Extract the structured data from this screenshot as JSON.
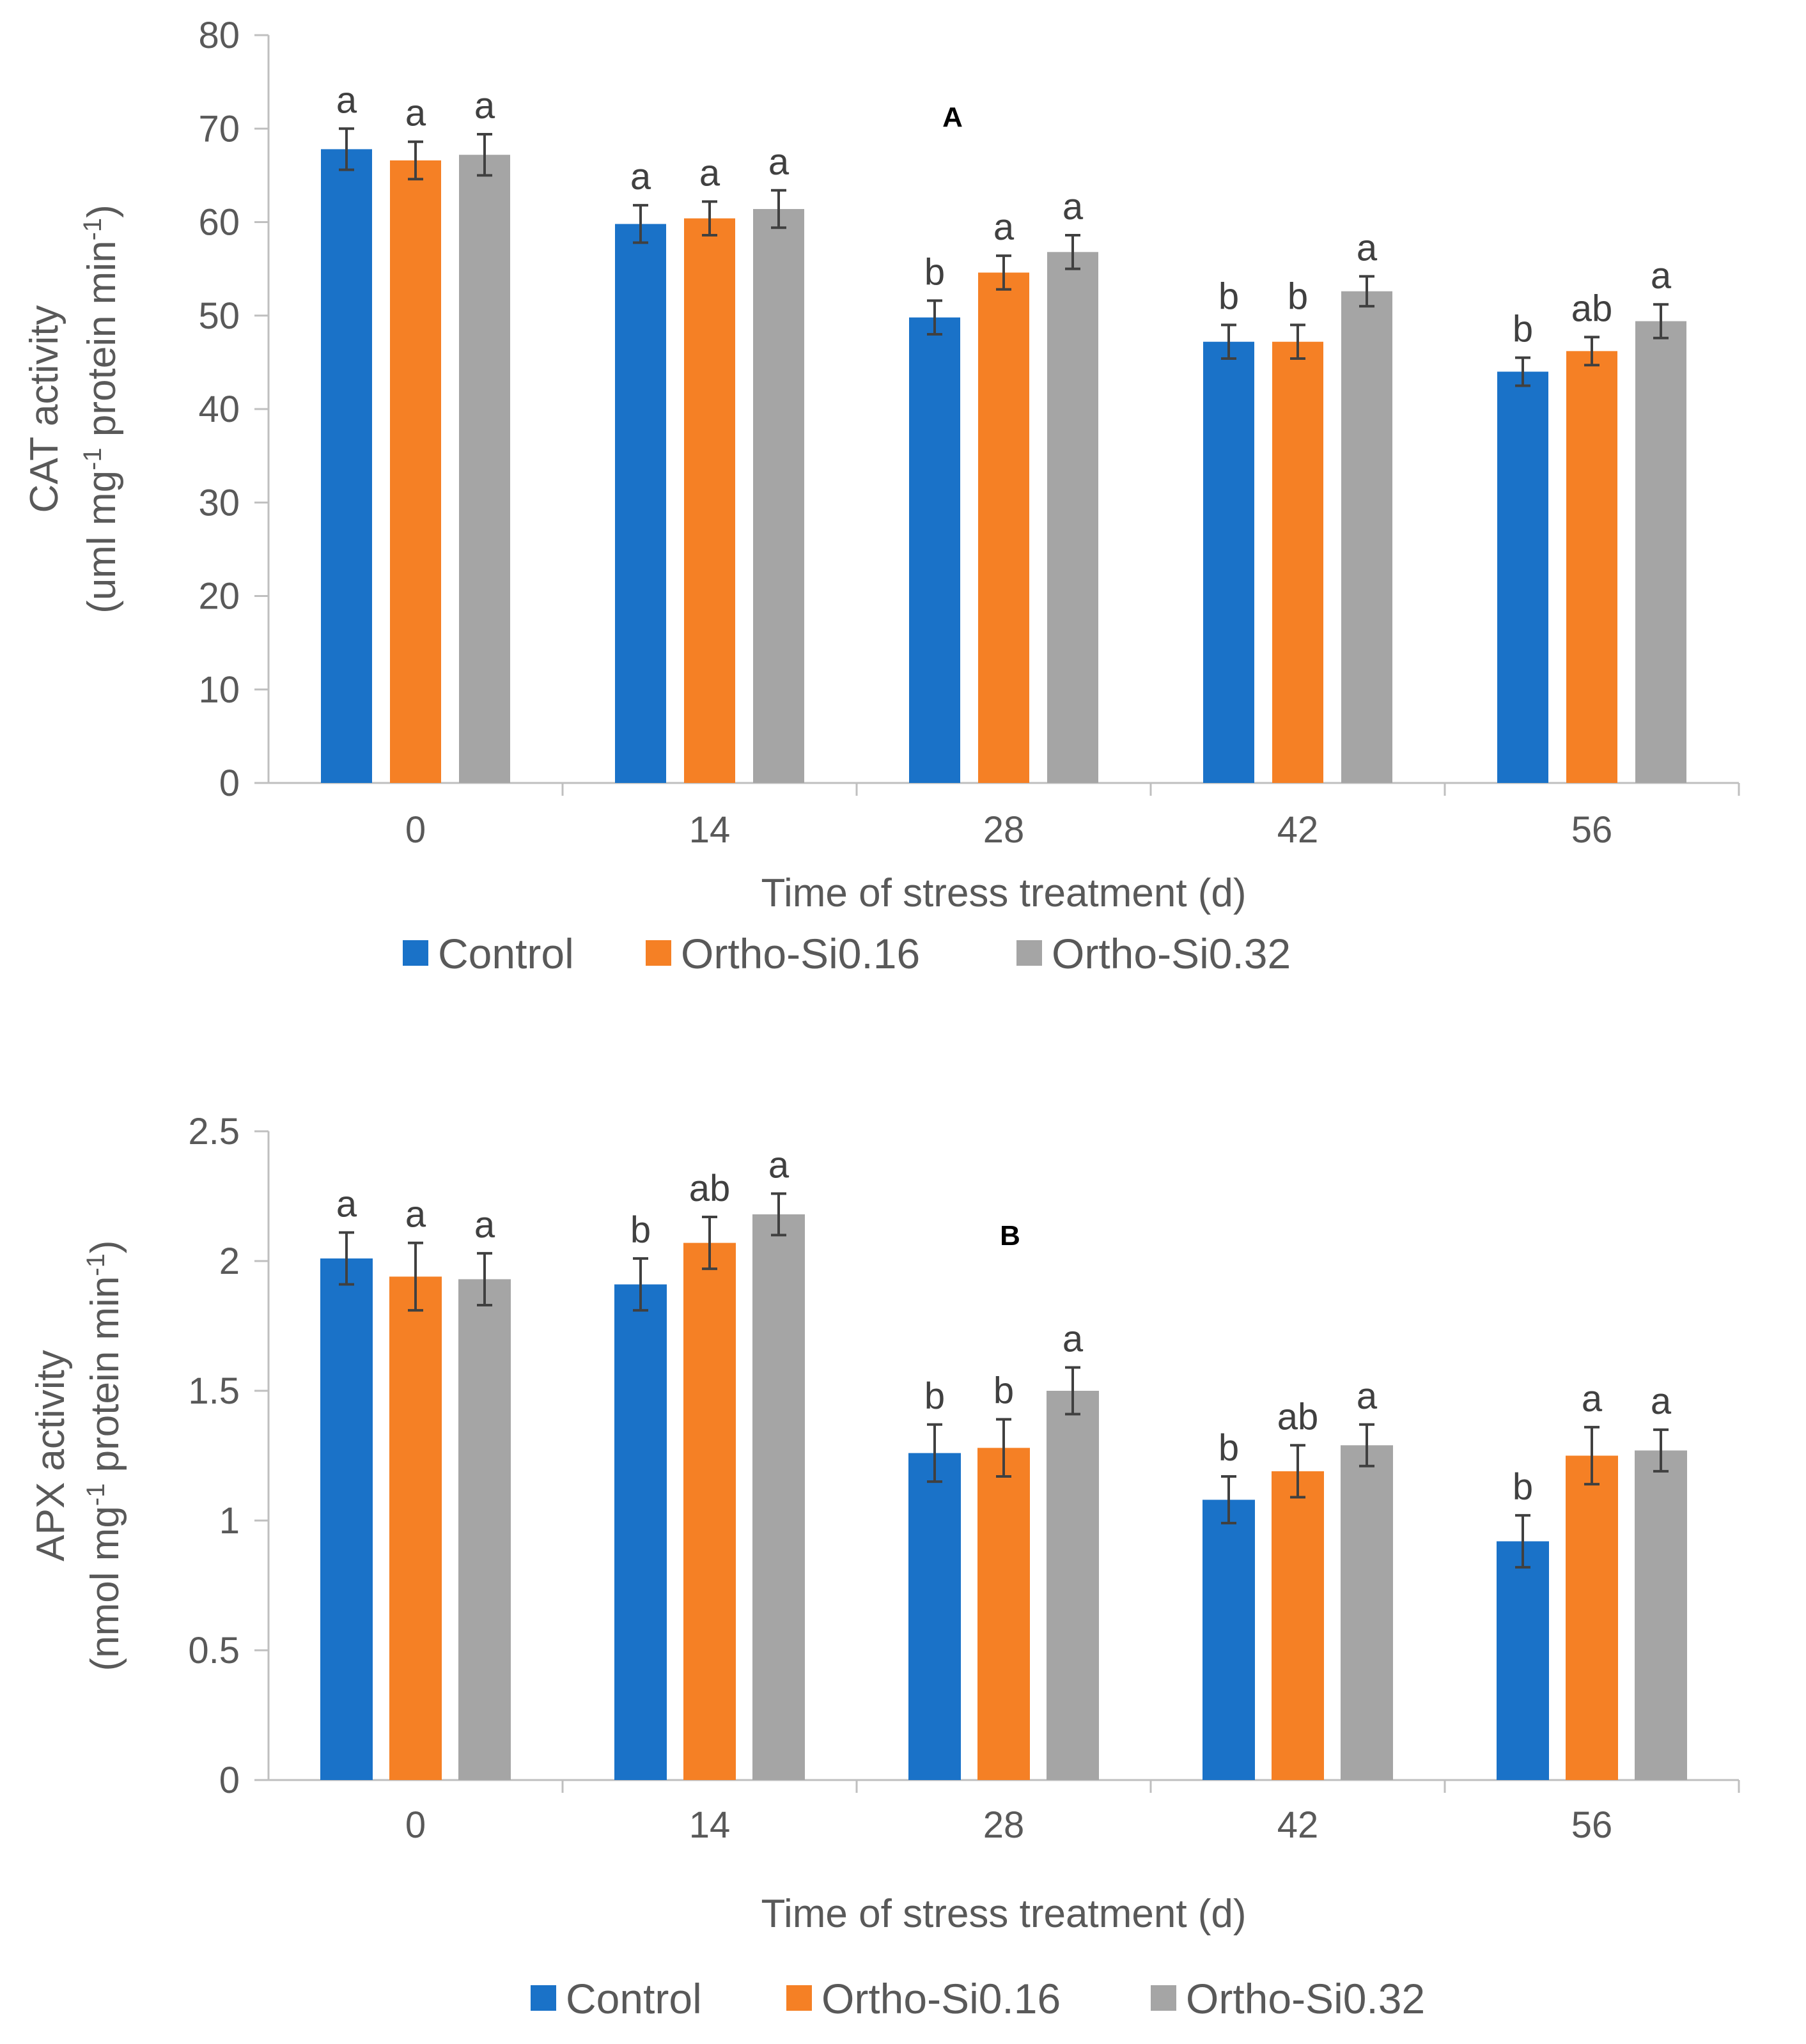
{
  "chart_data": [
    {
      "type": "bar",
      "panel_label": "A",
      "xlabel": "Time of stress treatment  (d)",
      "ylabel_line1": "CAT activity",
      "ylabel_line2_prefix": "(uml  mg",
      "ylabel_line2_sup1": "-1",
      "ylabel_line2_mid": " protein min",
      "ylabel_line2_sup2": "-1",
      "ylabel_line2_suffix": ")",
      "ylim": [
        0,
        80
      ],
      "yticks": [
        0,
        10,
        20,
        30,
        40,
        50,
        60,
        70,
        80
      ],
      "categories": [
        "0",
        "14",
        "28",
        "42",
        "56"
      ],
      "series": [
        {
          "name": "Control",
          "color": "#1a72c8",
          "values": [
            67.8,
            59.8,
            49.8,
            47.2,
            44.0
          ],
          "errors": [
            2.2,
            2.0,
            1.8,
            1.8,
            1.5
          ],
          "letters": [
            "a",
            "a",
            "b",
            "b",
            "b"
          ]
        },
        {
          "name": "Ortho-Si0.16",
          "color": "#f58025",
          "values": [
            66.6,
            60.4,
            54.6,
            47.2,
            46.2
          ],
          "errors": [
            2.0,
            1.8,
            1.8,
            1.8,
            1.5
          ],
          "letters": [
            "a",
            "a",
            "a",
            "b",
            "ab"
          ]
        },
        {
          "name": "Ortho-Si0.32",
          "color": "#a5a5a5",
          "values": [
            67.2,
            61.4,
            56.8,
            52.6,
            49.4
          ],
          "errors": [
            2.2,
            2.0,
            1.8,
            1.6,
            1.8
          ],
          "letters": [
            "a",
            "a",
            "a",
            "a",
            "a"
          ]
        }
      ]
    },
    {
      "type": "bar",
      "panel_label": "B",
      "xlabel": "Time of stress treatment  (d)",
      "ylabel_line1": "APX activity",
      "ylabel_line2_prefix": "(nmol mg",
      "ylabel_line2_sup1": "-1",
      "ylabel_line2_mid": " protein min",
      "ylabel_line2_sup2": "-1",
      "ylabel_line2_suffix": ")",
      "ylim": [
        0,
        2.5
      ],
      "yticks": [
        0,
        0.5,
        1,
        1.5,
        2,
        2.5
      ],
      "categories": [
        "0",
        "14",
        "28",
        "42",
        "56"
      ],
      "series": [
        {
          "name": "Control",
          "color": "#1a72c8",
          "values": [
            2.01,
            1.91,
            1.26,
            1.08,
            0.92
          ],
          "errors": [
            0.1,
            0.1,
            0.11,
            0.09,
            0.1
          ],
          "letters": [
            "a",
            "b",
            "b",
            "b",
            "b"
          ]
        },
        {
          "name": "Ortho-Si0.16",
          "color": "#f58025",
          "values": [
            1.94,
            2.07,
            1.28,
            1.19,
            1.25
          ],
          "errors": [
            0.13,
            0.1,
            0.11,
            0.1,
            0.11
          ],
          "letters": [
            "a",
            "ab",
            "b",
            "ab",
            "a"
          ]
        },
        {
          "name": "Ortho-Si0.32",
          "color": "#a5a5a5",
          "values": [
            1.93,
            2.18,
            1.5,
            1.29,
            1.27
          ],
          "errors": [
            0.1,
            0.08,
            0.09,
            0.08,
            0.08
          ],
          "letters": [
            "a",
            "a",
            "a",
            "a",
            "a"
          ]
        }
      ]
    }
  ]
}
